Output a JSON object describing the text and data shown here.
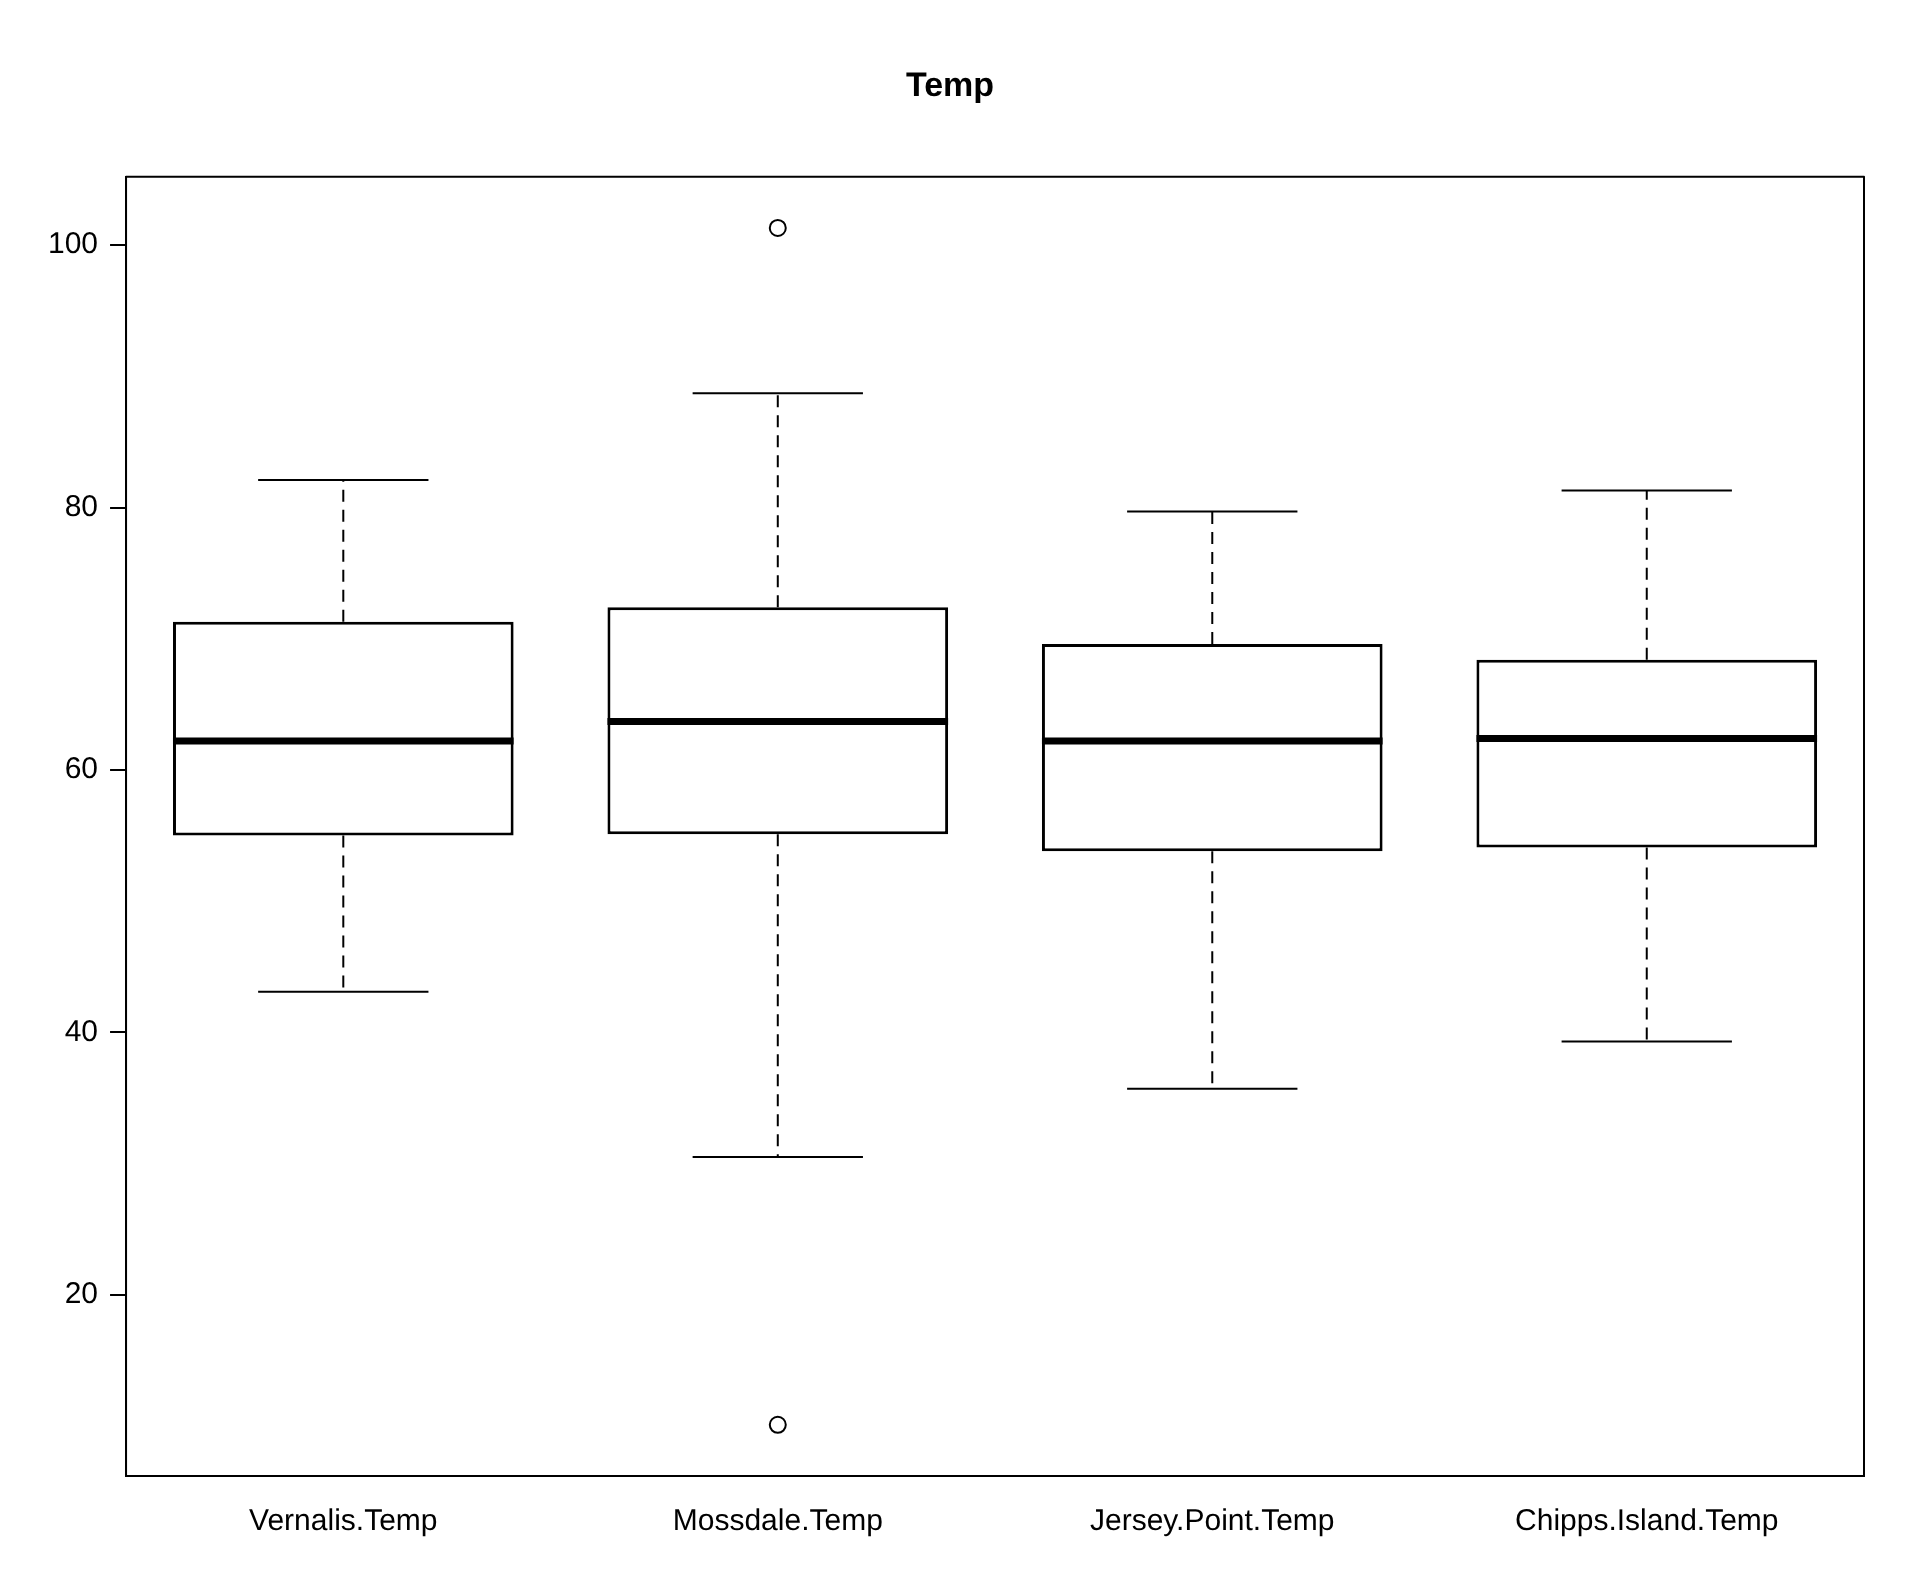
{
  "chart_data": {
    "type": "box",
    "title": "Temp",
    "categories": [
      "Vernalis.Temp",
      "Mossdale.Temp",
      "Jersey.Point.Temp",
      "Chipps.Island.Temp"
    ],
    "boxes": [
      {
        "low": 43.1,
        "q1": 55.0,
        "median": 62.2,
        "q3": 71.3,
        "high": 82.1
      },
      {
        "low": 30.5,
        "q1": 55.1,
        "median": 63.7,
        "q3": 72.4,
        "high": 88.7,
        "outliers": [
          101.3,
          10.1
        ]
      },
      {
        "low": 35.7,
        "q1": 53.8,
        "median": 62.2,
        "q3": 69.6,
        "high": 79.7
      },
      {
        "low": 39.3,
        "q1": 54.1,
        "median": 62.4,
        "q3": 68.4,
        "high": 81.3
      }
    ],
    "ylim": [
      6.2,
      105.2
    ],
    "yticks": [
      20,
      40,
      60,
      80,
      100
    ],
    "grid": false,
    "legend": false,
    "line_style": "dashed",
    "marker": "circle"
  }
}
